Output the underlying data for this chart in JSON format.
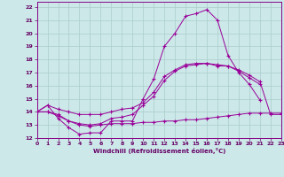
{
  "xlabel": "Windchill (Refroidissement éolien,°C)",
  "background_color": "#cce8e8",
  "grid_color": "#aacccc",
  "line_color": "#990099",
  "xlim": [
    0,
    23
  ],
  "ylim": [
    12,
    22.4
  ],
  "xticks": [
    0,
    1,
    2,
    3,
    4,
    5,
    6,
    7,
    8,
    9,
    10,
    11,
    12,
    13,
    14,
    15,
    16,
    17,
    18,
    19,
    20,
    21,
    22,
    23
  ],
  "yticks": [
    12,
    13,
    14,
    15,
    16,
    17,
    18,
    19,
    20,
    21,
    22
  ],
  "series": [
    {
      "x": [
        0,
        1,
        2,
        3,
        4,
        5,
        6,
        7,
        8,
        9,
        10,
        11,
        12,
        13,
        14,
        15,
        16,
        17,
        18,
        19,
        20,
        21
      ],
      "y": [
        14.0,
        14.5,
        13.5,
        12.8,
        12.3,
        12.4,
        12.4,
        13.3,
        13.3,
        13.3,
        15.0,
        16.5,
        19.0,
        20.0,
        21.3,
        21.5,
        21.8,
        21.0,
        18.3,
        17.0,
        16.1,
        14.9
      ]
    },
    {
      "x": [
        0,
        1,
        2,
        3,
        4,
        5,
        6,
        7,
        8,
        9,
        10,
        11,
        12,
        13,
        14,
        15,
        16,
        17,
        18,
        19,
        20,
        21,
        22,
        23
      ],
      "y": [
        14.0,
        14.0,
        13.8,
        13.3,
        13.1,
        13.0,
        13.1,
        13.5,
        13.6,
        13.8,
        14.5,
        15.2,
        16.4,
        17.1,
        17.5,
        17.6,
        17.7,
        17.5,
        17.5,
        17.2,
        16.8,
        16.3,
        13.8,
        13.8
      ]
    },
    {
      "x": [
        0,
        1,
        2,
        3,
        4,
        5,
        6,
        7,
        8,
        9,
        10,
        11,
        12,
        13,
        14,
        15,
        16,
        17,
        18,
        19,
        20,
        21,
        22,
        23
      ],
      "y": [
        14.0,
        14.0,
        13.7,
        13.3,
        13.0,
        12.9,
        13.0,
        13.1,
        13.1,
        13.1,
        13.2,
        13.2,
        13.3,
        13.3,
        13.4,
        13.4,
        13.5,
        13.6,
        13.7,
        13.8,
        13.9,
        13.9,
        13.9,
        13.9
      ]
    },
    {
      "x": [
        0,
        1,
        2,
        3,
        4,
        5,
        6,
        7,
        8,
        9,
        10,
        11,
        12,
        13,
        14,
        15,
        16,
        17,
        18,
        19,
        20,
        21
      ],
      "y": [
        14.0,
        14.5,
        14.2,
        14.0,
        13.8,
        13.8,
        13.8,
        14.0,
        14.2,
        14.3,
        14.7,
        15.5,
        16.7,
        17.2,
        17.6,
        17.7,
        17.7,
        17.6,
        17.5,
        17.1,
        16.6,
        16.1
      ]
    }
  ]
}
